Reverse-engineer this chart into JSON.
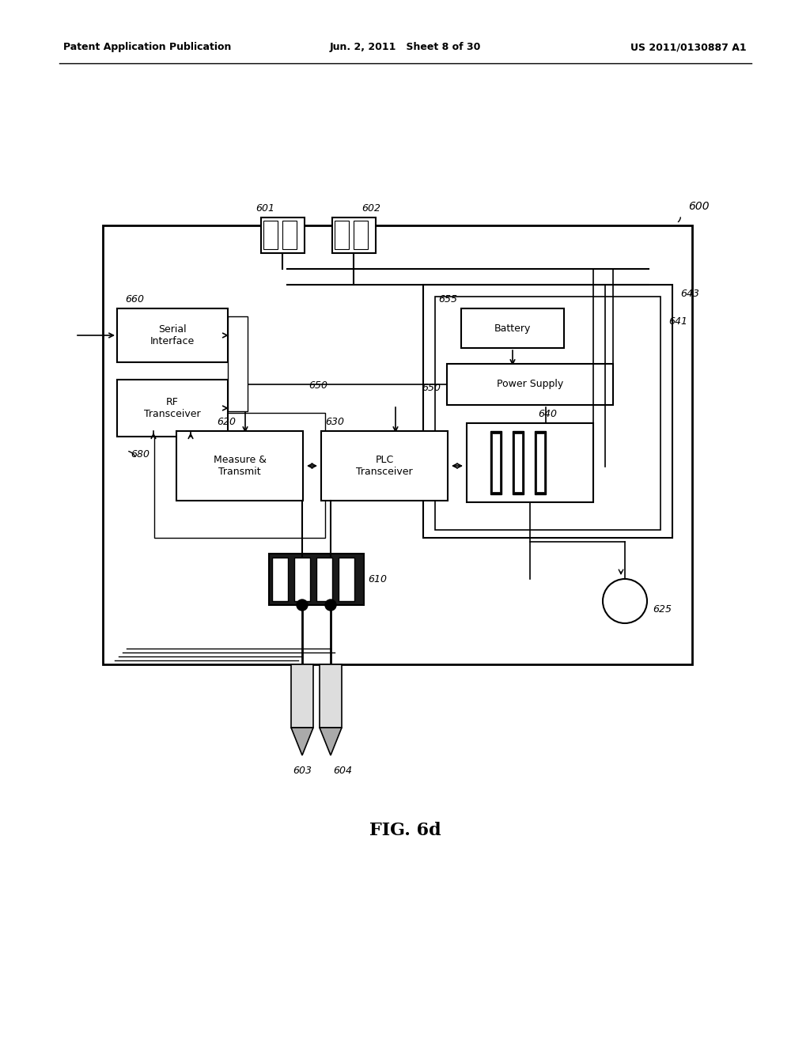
{
  "bg_color": "#ffffff",
  "header_left": "Patent Application Publication",
  "header_mid": "Jun. 2, 2011   Sheet 8 of 30",
  "header_right": "US 2011/0130887 A1",
  "caption": "FIG. 6d"
}
